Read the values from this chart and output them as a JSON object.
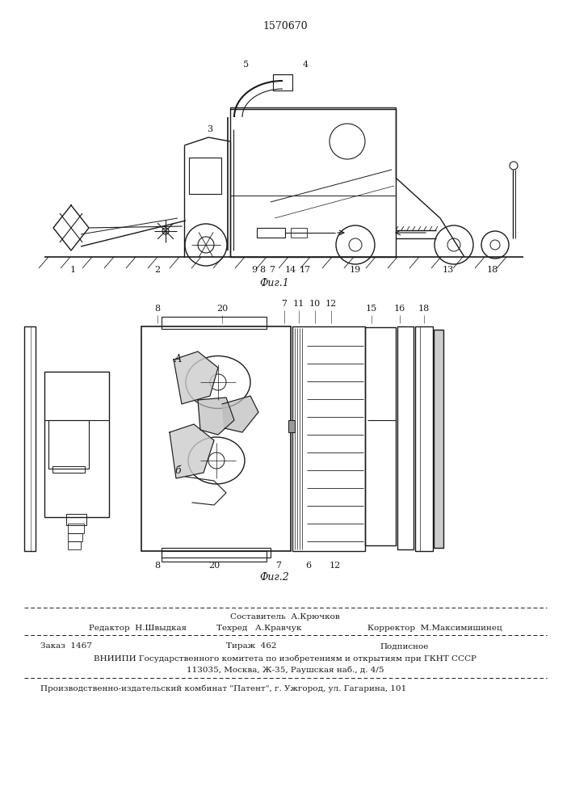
{
  "patent_number": "1570670",
  "fig1_caption": "Фиг.1",
  "fig2_caption": "Фиг.2",
  "footer_sestavitel": "Составитель  А.Крючков",
  "footer_editor": "Редактор  Н.Швыдкая",
  "footer_tekhred": "Техред   А.Кравчук",
  "footer_korrektor": "Корректор  М.Максимишинец",
  "footer_zakaz": "Заказ  1467",
  "footer_tirazh": "Тираж  462",
  "footer_podpisnoe": "Подписное",
  "footer_vnipi1": "ВНИИПИ Государственного комитета по изобретениям и открытиям при ГКНТ СССР",
  "footer_vnipi2": "113035, Москва, Ж-35, Раушская наб., д. 4/5",
  "footer_proizv": "Производственно-издательский комбинат \"Патент\", г. Ужгород, ул. Гагарина, 101",
  "bg_color": "#ffffff",
  "line_color": "#1a1a1a"
}
